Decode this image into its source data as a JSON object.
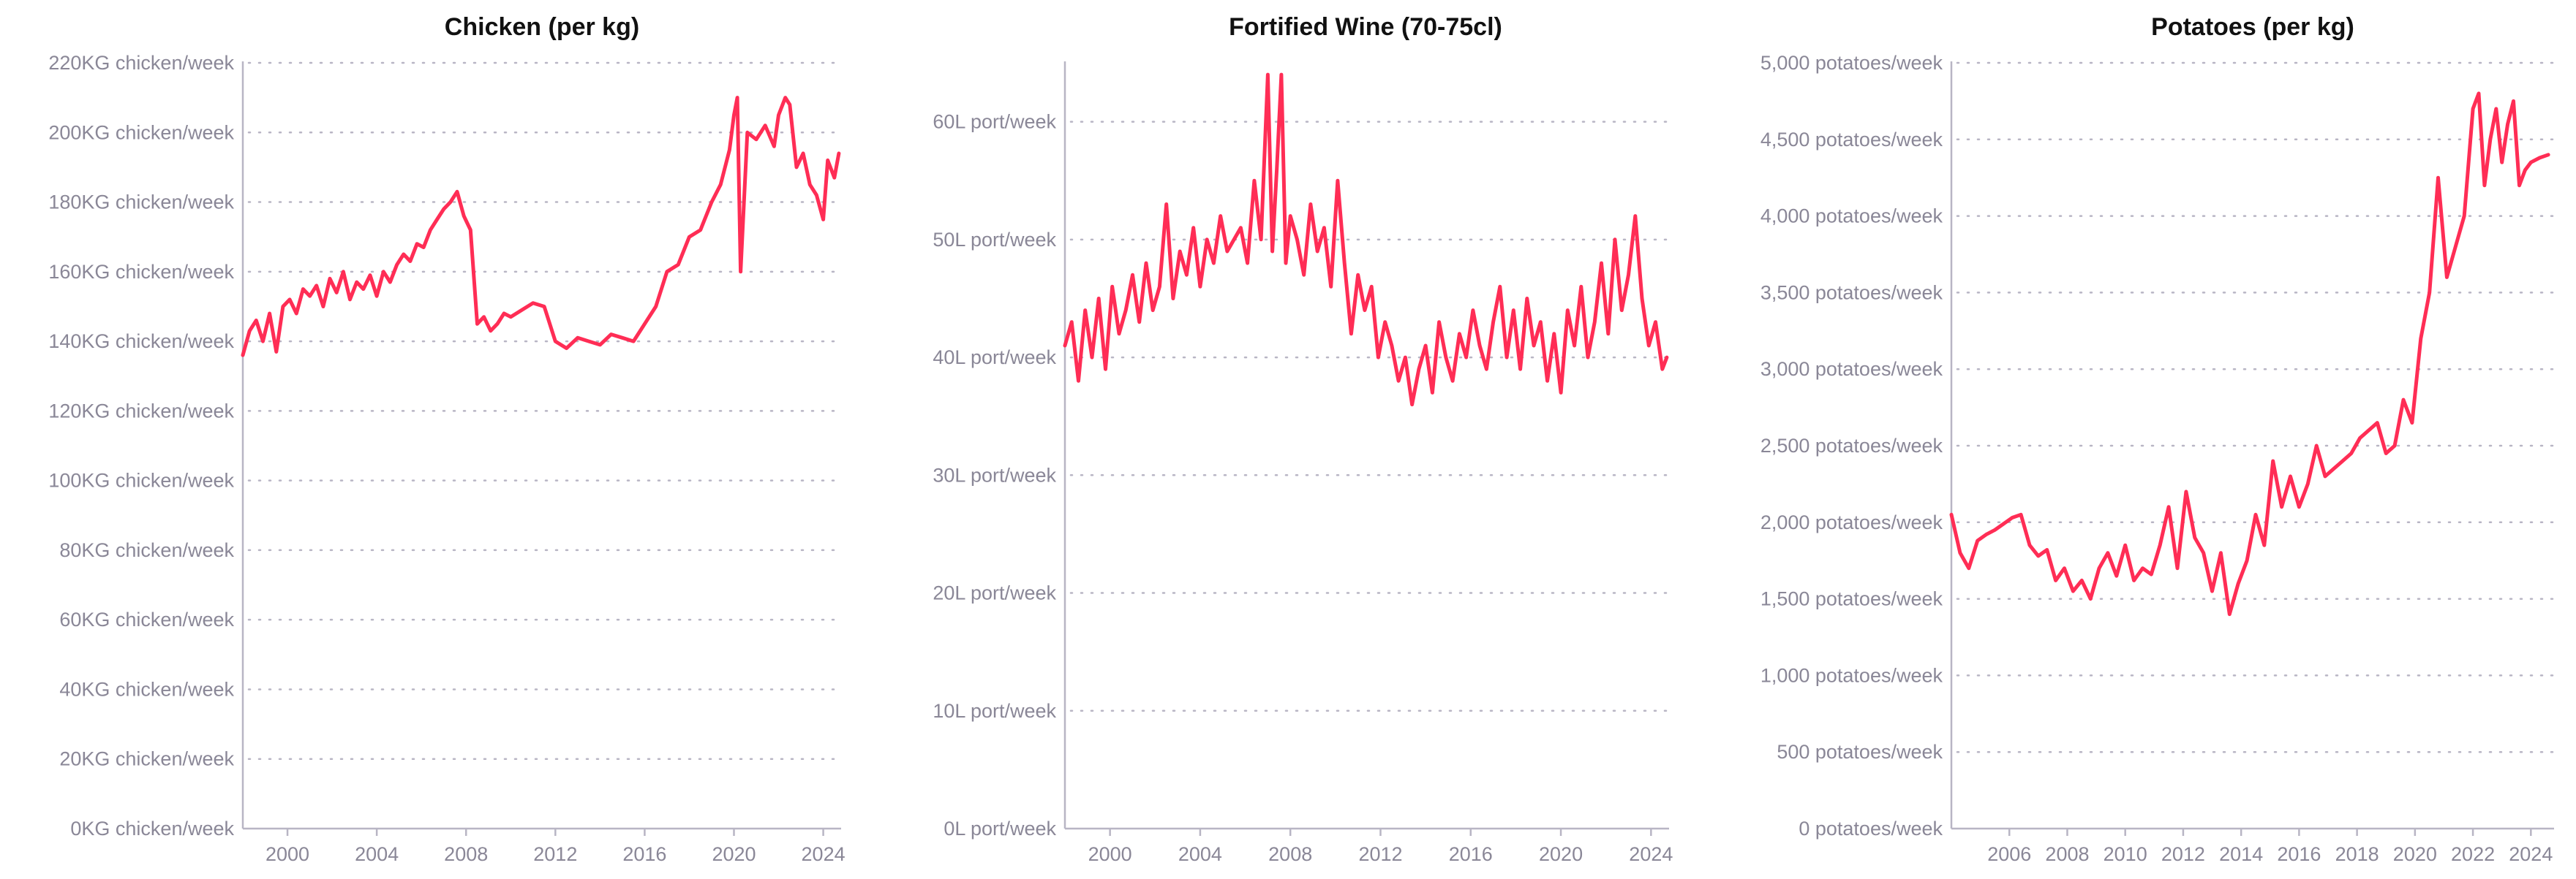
{
  "accent_color": "#ff2d55",
  "chart_data": [
    {
      "type": "line",
      "title": "Chicken (per kg)",
      "ylim": [
        0,
        220
      ],
      "yticks": [
        0,
        20,
        40,
        60,
        80,
        100,
        120,
        140,
        160,
        180,
        200,
        220
      ],
      "ytick_labels": [
        "0KG chicken/week",
        "20KG chicken/week",
        "40KG chicken/week",
        "60KG chicken/week",
        "80KG chicken/week",
        "100KG chicken/week",
        "120KG chicken/week",
        "140KG chicken/week",
        "160KG chicken/week",
        "180KG chicken/week",
        "200KG chicken/week",
        "220KG chicken/week"
      ],
      "xlim": [
        1998.0,
        2024.8
      ],
      "xticks": [
        2000,
        2004,
        2008,
        2012,
        2016,
        2020,
        2024
      ],
      "xtick_labels": [
        "2000",
        "2004",
        "2008",
        "2012",
        "2016",
        "2020",
        "2024"
      ],
      "grid": true,
      "series": [
        {
          "color": "#ff2d55",
          "x": [
            1998.0,
            1998.3,
            1998.6,
            1998.9,
            1999.2,
            1999.5,
            1999.8,
            2000.1,
            2000.4,
            2000.7,
            2001.0,
            2001.3,
            2001.6,
            2001.9,
            2002.2,
            2002.5,
            2002.8,
            2003.1,
            2003.4,
            2003.7,
            2004.0,
            2004.3,
            2004.6,
            2004.9,
            2005.2,
            2005.5,
            2005.8,
            2006.1,
            2006.4,
            2006.7,
            2007.0,
            2007.3,
            2007.6,
            2007.9,
            2008.2,
            2008.5,
            2008.8,
            2009.1,
            2009.4,
            2009.7,
            2010.0,
            2010.5,
            2011.0,
            2011.5,
            2012.0,
            2012.5,
            2013.0,
            2013.5,
            2014.0,
            2014.5,
            2015.0,
            2015.5,
            2016.0,
            2016.5,
            2017.0,
            2017.5,
            2018.0,
            2018.5,
            2019.0,
            2019.4,
            2019.8,
            2020.0,
            2020.15,
            2020.3,
            2020.6,
            2021.0,
            2021.4,
            2021.8,
            2022.0,
            2022.3,
            2022.5,
            2022.8,
            2023.1,
            2023.4,
            2023.7,
            2024.0,
            2024.2,
            2024.5,
            2024.7
          ],
          "y": [
            136,
            143,
            146,
            140,
            148,
            137,
            150,
            152,
            148,
            155,
            153,
            156,
            150,
            158,
            154,
            160,
            152,
            157,
            155,
            159,
            153,
            160,
            157,
            162,
            165,
            163,
            168,
            167,
            172,
            175,
            178,
            180,
            183,
            176,
            172,
            145,
            147,
            143,
            145,
            148,
            147,
            149,
            151,
            150,
            140,
            138,
            141,
            140,
            139,
            142,
            141,
            140,
            145,
            150,
            160,
            162,
            170,
            172,
            180,
            185,
            195,
            205,
            210,
            160,
            200,
            198,
            202,
            196,
            205,
            210,
            208,
            190,
            194,
            185,
            182,
            175,
            192,
            187,
            194
          ]
        }
      ]
    },
    {
      "type": "line",
      "title": "Fortified Wine (70-75cl)",
      "ylim": [
        0,
        65
      ],
      "yticks": [
        0,
        10,
        20,
        30,
        40,
        50,
        60
      ],
      "ytick_labels": [
        "0L port/week",
        "10L port/week",
        "20L port/week",
        "30L port/week",
        "40L port/week",
        "50L port/week",
        "60L port/week"
      ],
      "xlim": [
        1998.0,
        2024.8
      ],
      "xticks": [
        2000,
        2004,
        2008,
        2012,
        2016,
        2020,
        2024
      ],
      "xtick_labels": [
        "2000",
        "2004",
        "2008",
        "2012",
        "2016",
        "2020",
        "2024"
      ],
      "grid": true,
      "series": [
        {
          "color": "#ff2d55",
          "x": [
            1998.0,
            1998.3,
            1998.6,
            1998.9,
            1999.2,
            1999.5,
            1999.8,
            2000.1,
            2000.4,
            2000.7,
            2001.0,
            2001.3,
            2001.6,
            2001.9,
            2002.2,
            2002.5,
            2002.8,
            2003.1,
            2003.4,
            2003.7,
            2004.0,
            2004.3,
            2004.6,
            2004.9,
            2005.2,
            2005.5,
            2005.8,
            2006.1,
            2006.4,
            2006.7,
            2007.0,
            2007.2,
            2007.4,
            2007.6,
            2007.8,
            2008.0,
            2008.3,
            2008.6,
            2008.9,
            2009.2,
            2009.5,
            2009.8,
            2010.1,
            2010.4,
            2010.7,
            2011.0,
            2011.3,
            2011.6,
            2011.9,
            2012.2,
            2012.5,
            2012.8,
            2013.1,
            2013.4,
            2013.7,
            2014.0,
            2014.3,
            2014.6,
            2014.9,
            2015.2,
            2015.5,
            2015.8,
            2016.1,
            2016.4,
            2016.7,
            2017.0,
            2017.3,
            2017.6,
            2017.9,
            2018.2,
            2018.5,
            2018.8,
            2019.1,
            2019.4,
            2019.7,
            2020.0,
            2020.3,
            2020.6,
            2020.9,
            2021.2,
            2021.5,
            2021.8,
            2022.1,
            2022.4,
            2022.7,
            2023.0,
            2023.3,
            2023.6,
            2023.9,
            2024.2,
            2024.5,
            2024.7
          ],
          "y": [
            41,
            43,
            38,
            44,
            40,
            45,
            39,
            46,
            42,
            44,
            47,
            43,
            48,
            44,
            46,
            53,
            45,
            49,
            47,
            51,
            46,
            50,
            48,
            52,
            49,
            50,
            51,
            48,
            55,
            50,
            64,
            49,
            56,
            64,
            48,
            52,
            50,
            47,
            53,
            49,
            51,
            46,
            55,
            48,
            42,
            47,
            44,
            46,
            40,
            43,
            41,
            38,
            40,
            36,
            39,
            41,
            37,
            43,
            40,
            38,
            42,
            40,
            44,
            41,
            39,
            43,
            46,
            40,
            44,
            39,
            45,
            41,
            43,
            38,
            42,
            37,
            44,
            41,
            46,
            40,
            43,
            48,
            42,
            50,
            44,
            47,
            52,
            45,
            41,
            43,
            39,
            40
          ]
        }
      ]
    },
    {
      "type": "line",
      "title": "Potatoes (per kg)",
      "ylim": [
        0,
        5000
      ],
      "yticks": [
        0,
        500,
        1000,
        1500,
        2000,
        2500,
        3000,
        3500,
        4000,
        4500,
        5000
      ],
      "ytick_labels": [
        "0 potatoes/week",
        "500 potatoes/week",
        "1,000 potatoes/week",
        "1,500 potatoes/week",
        "2,000 potatoes/week",
        "2,500 potatoes/week",
        "3,000 potatoes/week",
        "3,500 potatoes/week",
        "4,000 potatoes/week",
        "4,500 potatoes/week",
        "5,000 potatoes/week"
      ],
      "xlim": [
        2004.0,
        2024.8
      ],
      "xticks": [
        2006,
        2008,
        2010,
        2012,
        2014,
        2016,
        2018,
        2020,
        2022,
        2024
      ],
      "xtick_labels": [
        "2006",
        "2008",
        "2010",
        "2012",
        "2014",
        "2016",
        "2018",
        "2020",
        "2022",
        "2024"
      ],
      "grid": true,
      "series": [
        {
          "color": "#ff2d55",
          "x": [
            2004.0,
            2004.3,
            2004.6,
            2004.9,
            2005.2,
            2005.5,
            2005.8,
            2006.1,
            2006.4,
            2006.7,
            2007.0,
            2007.3,
            2007.6,
            2007.9,
            2008.2,
            2008.5,
            2008.8,
            2009.1,
            2009.4,
            2009.7,
            2010.0,
            2010.3,
            2010.6,
            2010.9,
            2011.2,
            2011.5,
            2011.8,
            2012.1,
            2012.4,
            2012.7,
            2013.0,
            2013.3,
            2013.6,
            2013.9,
            2014.2,
            2014.5,
            2014.8,
            2015.1,
            2015.4,
            2015.7,
            2016.0,
            2016.3,
            2016.6,
            2016.9,
            2017.2,
            2017.5,
            2017.8,
            2018.1,
            2018.4,
            2018.7,
            2019.0,
            2019.3,
            2019.6,
            2019.9,
            2020.2,
            2020.5,
            2020.8,
            2021.1,
            2021.4,
            2021.7,
            2022.0,
            2022.2,
            2022.4,
            2022.6,
            2022.8,
            2023.0,
            2023.2,
            2023.4,
            2023.6,
            2023.8,
            2024.0,
            2024.3,
            2024.6
          ],
          "y": [
            2050,
            1800,
            1700,
            1880,
            1920,
            1950,
            1990,
            2030,
            2050,
            1850,
            1780,
            1820,
            1620,
            1700,
            1550,
            1620,
            1500,
            1700,
            1800,
            1650,
            1850,
            1620,
            1700,
            1660,
            1850,
            2100,
            1700,
            2200,
            1900,
            1800,
            1550,
            1800,
            1400,
            1600,
            1750,
            2050,
            1850,
            2400,
            2100,
            2300,
            2100,
            2250,
            2500,
            2300,
            2350,
            2400,
            2450,
            2550,
            2600,
            2650,
            2450,
            2500,
            2800,
            2650,
            3200,
            3500,
            4250,
            3600,
            3800,
            4000,
            4700,
            4800,
            4200,
            4500,
            4700,
            4350,
            4600,
            4750,
            4200,
            4300,
            4350,
            4380,
            4400
          ]
        }
      ]
    }
  ]
}
